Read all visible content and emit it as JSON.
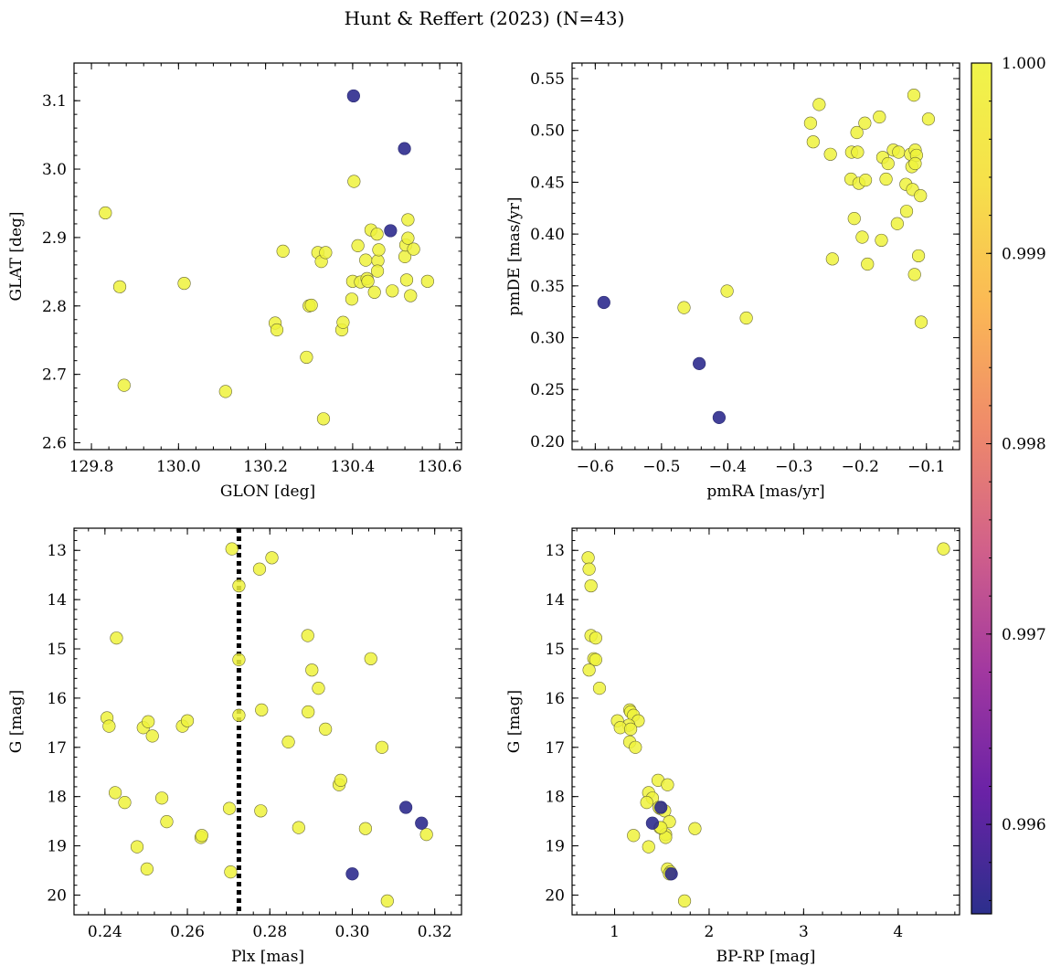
{
  "chart_data": {
    "title": "Hunt & Reffert (2023) (N=43)",
    "type": "scatter",
    "colorbar": {
      "min": 0.99553,
      "max": 1.0,
      "ticks": [
        0.996,
        0.997,
        0.998,
        0.999,
        1.0
      ],
      "tick_labels": [
        "0.996",
        "0.997",
        "0.998",
        "0.999",
        "1.000"
      ],
      "colormap": [
        "#2c2f8c",
        "#6a22a6",
        "#a238a0",
        "#d1608a",
        "#ef8a6a",
        "#fbb855",
        "#f6e04a",
        "#f0f44a"
      ]
    },
    "point_colors": {
      "high": "#eef23c",
      "low": "#2d2b8e"
    },
    "panels": [
      {
        "id": "sky",
        "xlabel": "GLON [deg]",
        "ylabel": "GLAT [deg]",
        "xlim": [
          129.76,
          130.65
        ],
        "ylim": [
          2.59,
          3.155
        ],
        "invert_y": false,
        "xticks": [
          129.8,
          130.0,
          130.2,
          130.4,
          130.6
        ],
        "xtick_labels": [
          "129.8",
          "130.0",
          "130.2",
          "130.4",
          "130.6"
        ],
        "yticks": [
          2.6,
          2.7,
          2.8,
          2.9,
          3.0,
          3.1
        ],
        "ytick_labels": [
          "2.6",
          "2.7",
          "2.8",
          "2.9",
          "3.0",
          "3.1"
        ],
        "points": [
          {
            "x": 129.832,
            "y": 2.936,
            "c": 1
          },
          {
            "x": 129.865,
            "y": 2.828,
            "c": 1
          },
          {
            "x": 129.875,
            "y": 2.684,
            "c": 1
          },
          {
            "x": 130.013,
            "y": 2.833,
            "c": 1
          },
          {
            "x": 130.108,
            "y": 2.675,
            "c": 1
          },
          {
            "x": 130.222,
            "y": 2.775,
            "c": 1
          },
          {
            "x": 130.226,
            "y": 2.765,
            "c": 1
          },
          {
            "x": 130.24,
            "y": 2.88,
            "c": 1
          },
          {
            "x": 130.294,
            "y": 2.725,
            "c": 1
          },
          {
            "x": 130.3,
            "y": 2.8,
            "c": 1
          },
          {
            "x": 130.305,
            "y": 2.801,
            "c": 1
          },
          {
            "x": 130.32,
            "y": 2.878,
            "c": 1
          },
          {
            "x": 130.328,
            "y": 2.865,
            "c": 1
          },
          {
            "x": 130.338,
            "y": 2.878,
            "c": 1
          },
          {
            "x": 130.333,
            "y": 2.635,
            "c": 1
          },
          {
            "x": 130.375,
            "y": 2.765,
            "c": 1
          },
          {
            "x": 130.378,
            "y": 2.776,
            "c": 1
          },
          {
            "x": 130.398,
            "y": 2.81,
            "c": 1
          },
          {
            "x": 130.4,
            "y": 2.836,
            "c": 1
          },
          {
            "x": 130.403,
            "y": 2.982,
            "c": 1
          },
          {
            "x": 130.412,
            "y": 2.888,
            "c": 1
          },
          {
            "x": 130.418,
            "y": 2.835,
            "c": 1
          },
          {
            "x": 130.43,
            "y": 2.867,
            "c": 1
          },
          {
            "x": 130.433,
            "y": 2.84,
            "c": 1
          },
          {
            "x": 130.435,
            "y": 2.836,
            "c": 1
          },
          {
            "x": 130.442,
            "y": 2.911,
            "c": 1
          },
          {
            "x": 130.45,
            "y": 2.82,
            "c": 1
          },
          {
            "x": 130.456,
            "y": 2.905,
            "c": 1
          },
          {
            "x": 130.458,
            "y": 2.866,
            "c": 1
          },
          {
            "x": 130.457,
            "y": 2.851,
            "c": 1
          },
          {
            "x": 130.46,
            "y": 2.882,
            "c": 1
          },
          {
            "x": 130.491,
            "y": 2.822,
            "c": 1
          },
          {
            "x": 130.52,
            "y": 2.872,
            "c": 1
          },
          {
            "x": 130.522,
            "y": 2.889,
            "c": 1
          },
          {
            "x": 130.524,
            "y": 2.838,
            "c": 1
          },
          {
            "x": 130.527,
            "y": 2.899,
            "c": 1
          },
          {
            "x": 130.527,
            "y": 2.926,
            "c": 1
          },
          {
            "x": 130.533,
            "y": 2.815,
            "c": 1
          },
          {
            "x": 130.54,
            "y": 2.883,
            "c": 1
          },
          {
            "x": 130.572,
            "y": 2.836,
            "c": 1
          },
          {
            "x": 130.402,
            "y": 3.107,
            "c": 0
          },
          {
            "x": 130.519,
            "y": 3.03,
            "c": 0
          },
          {
            "x": 130.487,
            "y": 2.91,
            "c": 0
          }
        ]
      },
      {
        "id": "pm",
        "xlabel": "pmRA [mas/yr]",
        "ylabel": "pmDE [mas/yr]",
        "xlim": [
          -0.635,
          -0.05
        ],
        "ylim": [
          0.192,
          0.565
        ],
        "invert_y": false,
        "xticks": [
          -0.6,
          -0.5,
          -0.4,
          -0.3,
          -0.2,
          -0.1
        ],
        "xtick_labels": [
          "−0.6",
          "−0.5",
          "−0.4",
          "−0.3",
          "−0.2",
          "−0.1"
        ],
        "yticks": [
          0.2,
          0.25,
          0.3,
          0.35,
          0.4,
          0.45,
          0.5,
          0.55
        ],
        "ytick_labels": [
          "0.20",
          "0.25",
          "0.30",
          "0.35",
          "0.40",
          "0.45",
          "0.50",
          "0.55"
        ],
        "points": [
          {
            "x": -0.466,
            "y": 0.329,
            "c": 1
          },
          {
            "x": -0.401,
            "y": 0.345,
            "c": 1
          },
          {
            "x": -0.372,
            "y": 0.319,
            "c": 1
          },
          {
            "x": -0.275,
            "y": 0.507,
            "c": 1
          },
          {
            "x": -0.271,
            "y": 0.489,
            "c": 1
          },
          {
            "x": -0.262,
            "y": 0.525,
            "c": 1
          },
          {
            "x": -0.245,
            "y": 0.477,
            "c": 1
          },
          {
            "x": -0.242,
            "y": 0.376,
            "c": 1
          },
          {
            "x": -0.214,
            "y": 0.453,
            "c": 1
          },
          {
            "x": -0.213,
            "y": 0.479,
            "c": 1
          },
          {
            "x": -0.209,
            "y": 0.415,
            "c": 1
          },
          {
            "x": -0.205,
            "y": 0.498,
            "c": 1
          },
          {
            "x": -0.204,
            "y": 0.479,
            "c": 1
          },
          {
            "x": -0.202,
            "y": 0.449,
            "c": 1
          },
          {
            "x": -0.197,
            "y": 0.397,
            "c": 1
          },
          {
            "x": -0.193,
            "y": 0.507,
            "c": 1
          },
          {
            "x": -0.192,
            "y": 0.452,
            "c": 1
          },
          {
            "x": -0.189,
            "y": 0.371,
            "c": 1
          },
          {
            "x": -0.171,
            "y": 0.513,
            "c": 1
          },
          {
            "x": -0.168,
            "y": 0.394,
            "c": 1
          },
          {
            "x": -0.166,
            "y": 0.474,
            "c": 1
          },
          {
            "x": -0.161,
            "y": 0.453,
            "c": 1
          },
          {
            "x": -0.158,
            "y": 0.468,
            "c": 1
          },
          {
            "x": -0.15,
            "y": 0.481,
            "c": 1
          },
          {
            "x": -0.144,
            "y": 0.41,
            "c": 1
          },
          {
            "x": -0.142,
            "y": 0.479,
            "c": 1
          },
          {
            "x": -0.131,
            "y": 0.448,
            "c": 1
          },
          {
            "x": -0.13,
            "y": 0.422,
            "c": 1
          },
          {
            "x": -0.124,
            "y": 0.477,
            "c": 1
          },
          {
            "x": -0.122,
            "y": 0.465,
            "c": 1
          },
          {
            "x": -0.121,
            "y": 0.443,
            "c": 1
          },
          {
            "x": -0.119,
            "y": 0.534,
            "c": 1
          },
          {
            "x": -0.118,
            "y": 0.361,
            "c": 1
          },
          {
            "x": -0.117,
            "y": 0.481,
            "c": 1
          },
          {
            "x": -0.115,
            "y": 0.476,
            "c": 1
          },
          {
            "x": -0.112,
            "y": 0.379,
            "c": 1
          },
          {
            "x": -0.109,
            "y": 0.437,
            "c": 1
          },
          {
            "x": -0.108,
            "y": 0.315,
            "c": 1
          },
          {
            "x": -0.097,
            "y": 0.511,
            "c": 1
          },
          {
            "x": -0.117,
            "y": 0.468,
            "c": 1
          },
          {
            "x": -0.587,
            "y": 0.334,
            "c": 0
          },
          {
            "x": -0.443,
            "y": 0.275,
            "c": 0
          },
          {
            "x": -0.413,
            "y": 0.223,
            "c": 0
          }
        ]
      },
      {
        "id": "plx",
        "xlabel": "Plx [mas]",
        "ylabel": "G [mag]",
        "xlim": [
          0.2325,
          0.3265
        ],
        "ylim": [
          12.55,
          20.4
        ],
        "invert_y": true,
        "vline": {
          "x": 0.2725,
          "style": "dotted",
          "color": "#000000"
        },
        "xticks": [
          0.24,
          0.26,
          0.28,
          0.3,
          0.32
        ],
        "xtick_labels": [
          "0.24",
          "0.26",
          "0.28",
          "0.30",
          "0.32"
        ],
        "yticks": [
          13,
          14,
          15,
          16,
          17,
          18,
          19,
          20
        ],
        "ytick_labels": [
          "13",
          "14",
          "15",
          "16",
          "17",
          "18",
          "19",
          "20"
        ],
        "points": [
          {
            "x": 0.2405,
            "y": 16.4,
            "c": 1
          },
          {
            "x": 0.241,
            "y": 16.57,
            "c": 1
          },
          {
            "x": 0.2425,
            "y": 17.92,
            "c": 1
          },
          {
            "x": 0.2428,
            "y": 14.78,
            "c": 1
          },
          {
            "x": 0.2448,
            "y": 18.12,
            "c": 1
          },
          {
            "x": 0.2478,
            "y": 19.02,
            "c": 1
          },
          {
            "x": 0.2493,
            "y": 16.6,
            "c": 1
          },
          {
            "x": 0.2502,
            "y": 19.47,
            "c": 1
          },
          {
            "x": 0.2505,
            "y": 16.48,
            "c": 1
          },
          {
            "x": 0.2515,
            "y": 16.77,
            "c": 1
          },
          {
            "x": 0.2538,
            "y": 18.03,
            "c": 1
          },
          {
            "x": 0.255,
            "y": 18.51,
            "c": 1
          },
          {
            "x": 0.2588,
            "y": 16.57,
            "c": 1
          },
          {
            "x": 0.26,
            "y": 16.46,
            "c": 1
          },
          {
            "x": 0.2633,
            "y": 18.83,
            "c": 1
          },
          {
            "x": 0.2635,
            "y": 18.79,
            "c": 1
          },
          {
            "x": 0.2702,
            "y": 18.24,
            "c": 1
          },
          {
            "x": 0.2705,
            "y": 19.53,
            "c": 1
          },
          {
            "x": 0.2708,
            "y": 12.97,
            "c": 1
          },
          {
            "x": 0.2725,
            "y": 13.72,
            "c": 1
          },
          {
            "x": 0.2725,
            "y": 15.22,
            "c": 1
          },
          {
            "x": 0.2725,
            "y": 16.35,
            "c": 1
          },
          {
            "x": 0.2775,
            "y": 13.38,
            "c": 1
          },
          {
            "x": 0.2778,
            "y": 18.29,
            "c": 1
          },
          {
            "x": 0.278,
            "y": 16.24,
            "c": 1
          },
          {
            "x": 0.2805,
            "y": 13.15,
            "c": 1
          },
          {
            "x": 0.2845,
            "y": 16.89,
            "c": 1
          },
          {
            "x": 0.287,
            "y": 18.63,
            "c": 1
          },
          {
            "x": 0.2892,
            "y": 14.73,
            "c": 1
          },
          {
            "x": 0.2893,
            "y": 16.28,
            "c": 1
          },
          {
            "x": 0.2902,
            "y": 15.43,
            "c": 1
          },
          {
            "x": 0.2918,
            "y": 15.8,
            "c": 1
          },
          {
            "x": 0.2935,
            "y": 16.63,
            "c": 1
          },
          {
            "x": 0.2968,
            "y": 17.76,
            "c": 1
          },
          {
            "x": 0.2972,
            "y": 17.67,
            "c": 1
          },
          {
            "x": 0.3032,
            "y": 18.65,
            "c": 1
          },
          {
            "x": 0.3045,
            "y": 15.2,
            "c": 1
          },
          {
            "x": 0.3072,
            "y": 17.0,
            "c": 1
          },
          {
            "x": 0.3085,
            "y": 20.12,
            "c": 1
          },
          {
            "x": 0.318,
            "y": 18.77,
            "c": 1
          },
          {
            "x": 0.3,
            "y": 19.57,
            "c": 0
          },
          {
            "x": 0.313,
            "y": 18.22,
            "c": 0
          },
          {
            "x": 0.3168,
            "y": 18.54,
            "c": 0
          }
        ]
      },
      {
        "id": "cmd",
        "xlabel": "BP-RP [mag]",
        "ylabel": "G [mag]",
        "xlim": [
          0.55,
          4.65
        ],
        "ylim": [
          12.55,
          20.4
        ],
        "invert_y": true,
        "xticks": [
          1,
          2,
          3,
          4
        ],
        "xtick_labels": [
          "1",
          "2",
          "3",
          "4"
        ],
        "yticks": [
          13,
          14,
          15,
          16,
          17,
          18,
          19,
          20
        ],
        "ytick_labels": [
          "13",
          "14",
          "15",
          "16",
          "17",
          "18",
          "19",
          "20"
        ],
        "points": [
          {
            "x": 4.48,
            "y": 12.97,
            "c": 1
          },
          {
            "x": 0.72,
            "y": 13.15,
            "c": 1
          },
          {
            "x": 0.73,
            "y": 13.38,
            "c": 1
          },
          {
            "x": 0.75,
            "y": 13.72,
            "c": 1
          },
          {
            "x": 0.75,
            "y": 14.73,
            "c": 1
          },
          {
            "x": 0.8,
            "y": 14.78,
            "c": 1
          },
          {
            "x": 0.78,
            "y": 15.2,
            "c": 1
          },
          {
            "x": 0.8,
            "y": 15.22,
            "c": 1
          },
          {
            "x": 0.73,
            "y": 15.43,
            "c": 1
          },
          {
            "x": 0.84,
            "y": 15.8,
            "c": 1
          },
          {
            "x": 1.16,
            "y": 16.24,
            "c": 1
          },
          {
            "x": 1.17,
            "y": 16.28,
            "c": 1
          },
          {
            "x": 1.2,
            "y": 16.35,
            "c": 1
          },
          {
            "x": 1.03,
            "y": 16.46,
            "c": 1
          },
          {
            "x": 1.25,
            "y": 16.46,
            "c": 1
          },
          {
            "x": 1.15,
            "y": 16.55,
            "c": 1
          },
          {
            "x": 1.06,
            "y": 16.6,
            "c": 1
          },
          {
            "x": 1.17,
            "y": 16.63,
            "c": 1
          },
          {
            "x": 1.16,
            "y": 16.89,
            "c": 1
          },
          {
            "x": 1.22,
            "y": 17.0,
            "c": 1
          },
          {
            "x": 1.46,
            "y": 17.67,
            "c": 1
          },
          {
            "x": 1.56,
            "y": 17.76,
            "c": 1
          },
          {
            "x": 1.36,
            "y": 17.92,
            "c": 1
          },
          {
            "x": 1.4,
            "y": 18.03,
            "c": 1
          },
          {
            "x": 1.34,
            "y": 18.12,
            "c": 1
          },
          {
            "x": 1.48,
            "y": 18.24,
            "c": 1
          },
          {
            "x": 1.53,
            "y": 18.29,
            "c": 1
          },
          {
            "x": 1.58,
            "y": 18.51,
            "c": 1
          },
          {
            "x": 1.48,
            "y": 18.63,
            "c": 1
          },
          {
            "x": 1.85,
            "y": 18.65,
            "c": 1
          },
          {
            "x": 1.54,
            "y": 18.77,
            "c": 1
          },
          {
            "x": 1.2,
            "y": 18.79,
            "c": 1
          },
          {
            "x": 1.54,
            "y": 18.83,
            "c": 1
          },
          {
            "x": 1.36,
            "y": 19.02,
            "c": 1
          },
          {
            "x": 1.56,
            "y": 19.47,
            "c": 1
          },
          {
            "x": 1.59,
            "y": 19.53,
            "c": 1
          },
          {
            "x": 1.74,
            "y": 20.12,
            "c": 1
          },
          {
            "x": 1.47,
            "y": 18.22,
            "c": 1
          },
          {
            "x": 1.58,
            "y": 19.57,
            "c": 1
          },
          {
            "x": 1.49,
            "y": 18.63,
            "c": 1
          },
          {
            "x": 1.49,
            "y": 18.22,
            "c": 0
          },
          {
            "x": 1.4,
            "y": 18.54,
            "c": 0
          },
          {
            "x": 1.6,
            "y": 19.57,
            "c": 0
          }
        ]
      }
    ]
  }
}
